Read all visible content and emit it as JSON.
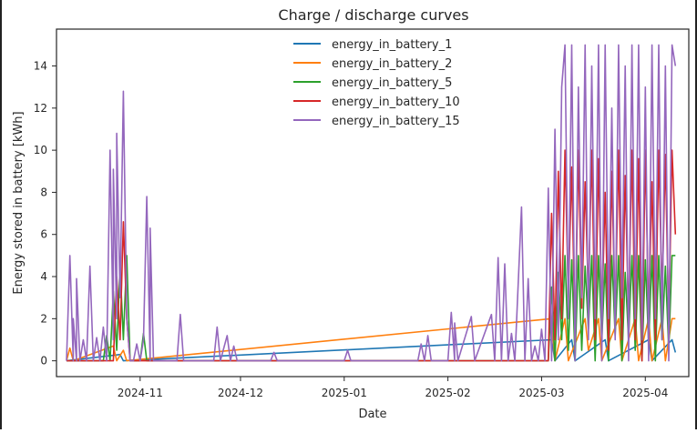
{
  "chart_data": {
    "type": "line",
    "title": "Charge / discharge curves",
    "xlabel": "Date",
    "ylabel": "Energy stored in battery [kWh]",
    "x_range": [
      "2024-10-07",
      "2025-04-14"
    ],
    "ylim": [
      -0.75,
      15.75
    ],
    "x_ticks": [
      {
        "date": "2024-11-01",
        "label": "2024-11"
      },
      {
        "date": "2024-12-01",
        "label": "2024-12"
      },
      {
        "date": "2025-01-01",
        "label": "2025-01"
      },
      {
        "date": "2025-02-01",
        "label": "2025-02"
      },
      {
        "date": "2025-03-01",
        "label": "2025-03"
      },
      {
        "date": "2025-04-01",
        "label": "2025-04"
      }
    ],
    "y_ticks": [
      0,
      2,
      4,
      6,
      8,
      10,
      12,
      14
    ],
    "grid": false,
    "legend_position": "top-center",
    "series": [
      {
        "name": "energy_in_battery_1",
        "color": "#1f77b4",
        "points": [
          [
            "2024-10-10",
            0
          ],
          [
            "2024-10-26",
            0.3
          ],
          [
            "2024-10-27",
            0
          ],
          [
            "2025-03-04",
            1
          ],
          [
            "2025-03-05",
            0
          ],
          [
            "2025-03-10",
            1
          ],
          [
            "2025-03-11",
            0
          ],
          [
            "2025-03-20",
            1
          ],
          [
            "2025-03-21",
            0
          ],
          [
            "2025-04-02",
            1
          ],
          [
            "2025-04-03",
            0
          ],
          [
            "2025-04-09",
            1
          ],
          [
            "2025-04-10",
            0.4
          ]
        ]
      },
      {
        "name": "energy_in_battery_2",
        "color": "#ff7f0e",
        "points": [
          [
            "2024-10-10",
            0
          ],
          [
            "2024-10-11",
            0.6
          ],
          [
            "2024-10-12",
            0
          ],
          [
            "2024-10-24",
            0.7
          ],
          [
            "2024-10-25",
            0
          ],
          [
            "2024-10-27",
            0.5
          ],
          [
            "2024-10-28",
            0
          ],
          [
            "2025-03-04",
            2
          ],
          [
            "2025-03-05",
            0
          ],
          [
            "2025-03-08",
            2
          ],
          [
            "2025-03-09",
            0
          ],
          [
            "2025-03-14",
            2
          ],
          [
            "2025-03-15",
            0.5
          ],
          [
            "2025-03-18",
            2
          ],
          [
            "2025-03-19",
            0
          ],
          [
            "2025-03-24",
            2
          ],
          [
            "2025-03-25",
            0
          ],
          [
            "2025-03-29",
            2
          ],
          [
            "2025-03-30",
            0
          ],
          [
            "2025-04-02",
            2
          ],
          [
            "2025-04-03",
            0
          ],
          [
            "2025-04-06",
            2
          ],
          [
            "2025-04-07",
            0
          ],
          [
            "2025-04-09",
            2
          ],
          [
            "2025-04-10",
            2
          ]
        ]
      },
      {
        "name": "energy_in_battery_5",
        "color": "#2ca02c",
        "points": [
          [
            "2024-10-10",
            0
          ],
          [
            "2024-10-21",
            0
          ],
          [
            "2024-10-22",
            1.2
          ],
          [
            "2024-10-23",
            0
          ],
          [
            "2024-10-24",
            3.3
          ],
          [
            "2024-10-25",
            0.5
          ],
          [
            "2024-10-26",
            4.5
          ],
          [
            "2024-10-27",
            1
          ],
          [
            "2024-10-28",
            5
          ],
          [
            "2024-10-29",
            0
          ],
          [
            "2024-11-01",
            0
          ],
          [
            "2024-11-02",
            1.3
          ],
          [
            "2024-11-03",
            0
          ],
          [
            "2025-03-03",
            0
          ],
          [
            "2025-03-04",
            3.5
          ],
          [
            "2025-03-05",
            0
          ],
          [
            "2025-03-06",
            4.2
          ],
          [
            "2025-03-07",
            1
          ],
          [
            "2025-03-08",
            5
          ],
          [
            "2025-03-09",
            0.5
          ],
          [
            "2025-03-10",
            4.8
          ],
          [
            "2025-03-11",
            0
          ],
          [
            "2025-03-12",
            5
          ],
          [
            "2025-03-13",
            0.5
          ],
          [
            "2025-03-14",
            4.5
          ],
          [
            "2025-03-15",
            1.5
          ],
          [
            "2025-03-16",
            5
          ],
          [
            "2025-03-17",
            0
          ],
          [
            "2025-03-18",
            5
          ],
          [
            "2025-03-19",
            1
          ],
          [
            "2025-03-20",
            4.6
          ],
          [
            "2025-03-21",
            0
          ],
          [
            "2025-03-22",
            5
          ],
          [
            "2025-03-23",
            1.2
          ],
          [
            "2025-03-24",
            5
          ],
          [
            "2025-03-25",
            0
          ],
          [
            "2025-03-26",
            4.2
          ],
          [
            "2025-03-27",
            1
          ],
          [
            "2025-03-28",
            5
          ],
          [
            "2025-03-29",
            0.5
          ],
          [
            "2025-03-30",
            5
          ],
          [
            "2025-03-31",
            0
          ],
          [
            "2025-04-01",
            4.8
          ],
          [
            "2025-04-02",
            0.8
          ],
          [
            "2025-04-03",
            5
          ],
          [
            "2025-04-04",
            0
          ],
          [
            "2025-04-05",
            5
          ],
          [
            "2025-04-06",
            1
          ],
          [
            "2025-04-07",
            4.5
          ],
          [
            "2025-04-08",
            0.5
          ],
          [
            "2025-04-09",
            5
          ],
          [
            "2025-04-10",
            5
          ]
        ]
      },
      {
        "name": "energy_in_battery_10",
        "color": "#d62728",
        "points": [
          [
            "2024-10-10",
            0
          ],
          [
            "2024-10-24",
            0
          ],
          [
            "2024-10-25",
            4
          ],
          [
            "2024-10-26",
            1
          ],
          [
            "2024-10-27",
            6.6
          ],
          [
            "2024-10-28",
            2
          ],
          [
            "2024-10-29",
            0
          ],
          [
            "2025-03-03",
            0
          ],
          [
            "2025-03-04",
            7
          ],
          [
            "2025-03-05",
            1
          ],
          [
            "2025-03-06",
            9
          ],
          [
            "2025-03-07",
            2
          ],
          [
            "2025-03-08",
            10
          ],
          [
            "2025-03-09",
            3
          ],
          [
            "2025-03-10",
            9.2
          ],
          [
            "2025-03-11",
            1
          ],
          [
            "2025-03-12",
            10
          ],
          [
            "2025-03-13",
            2.5
          ],
          [
            "2025-03-14",
            8.5
          ],
          [
            "2025-03-15",
            3
          ],
          [
            "2025-03-16",
            10
          ],
          [
            "2025-03-17",
            1
          ],
          [
            "2025-03-18",
            9.6
          ],
          [
            "2025-03-19",
            2
          ],
          [
            "2025-03-20",
            8
          ],
          [
            "2025-03-21",
            0.5
          ],
          [
            "2025-03-22",
            9
          ],
          [
            "2025-03-23",
            2
          ],
          [
            "2025-03-24",
            10
          ],
          [
            "2025-03-25",
            1
          ],
          [
            "2025-03-26",
            8.8
          ],
          [
            "2025-03-27",
            2
          ],
          [
            "2025-03-28",
            10
          ],
          [
            "2025-03-29",
            1
          ],
          [
            "2025-03-30",
            9.6
          ],
          [
            "2025-03-31",
            0
          ],
          [
            "2025-04-01",
            10
          ],
          [
            "2025-04-02",
            2
          ],
          [
            "2025-04-03",
            8.5
          ],
          [
            "2025-04-04",
            1
          ],
          [
            "2025-04-05",
            10
          ],
          [
            "2025-04-06",
            3
          ],
          [
            "2025-04-07",
            9.8
          ],
          [
            "2025-04-08",
            1.5
          ],
          [
            "2025-04-09",
            10
          ],
          [
            "2025-04-10",
            6
          ]
        ]
      },
      {
        "name": "energy_in_battery_15",
        "color": "#9467bd",
        "points": [
          [
            "2024-10-10",
            0
          ],
          [
            "2024-10-11",
            5
          ],
          [
            "2024-10-12",
            0
          ],
          [
            "2024-10-12",
            2
          ],
          [
            "2024-10-13",
            0
          ],
          [
            "2024-10-13",
            3.9
          ],
          [
            "2024-10-14",
            0
          ],
          [
            "2024-10-15",
            1
          ],
          [
            "2024-10-16",
            0
          ],
          [
            "2024-10-17",
            4.5
          ],
          [
            "2024-10-18",
            0
          ],
          [
            "2024-10-19",
            1.1
          ],
          [
            "2024-10-20",
            0
          ],
          [
            "2024-10-21",
            1.6
          ],
          [
            "2024-10-22",
            0
          ],
          [
            "2024-10-23",
            10
          ],
          [
            "2024-10-24",
            1
          ],
          [
            "2024-10-24",
            9.1
          ],
          [
            "2024-10-25",
            2
          ],
          [
            "2024-10-25",
            10.8
          ],
          [
            "2024-10-26",
            3
          ],
          [
            "2024-10-27",
            12.8
          ],
          [
            "2024-10-28",
            2
          ],
          [
            "2024-10-29",
            0
          ],
          [
            "2024-10-30",
            0
          ],
          [
            "2024-10-31",
            0.8
          ],
          [
            "2024-11-01",
            0
          ],
          [
            "2024-11-02",
            1
          ],
          [
            "2024-11-03",
            7.8
          ],
          [
            "2024-11-04",
            0
          ],
          [
            "2024-11-04",
            6.3
          ],
          [
            "2024-11-05",
            0
          ],
          [
            "2024-11-12",
            0
          ],
          [
            "2024-11-13",
            2.2
          ],
          [
            "2024-11-14",
            0
          ],
          [
            "2024-11-23",
            0
          ],
          [
            "2024-11-24",
            1.6
          ],
          [
            "2024-11-25",
            0
          ],
          [
            "2024-11-27",
            1.2
          ],
          [
            "2024-11-28",
            0
          ],
          [
            "2024-11-29",
            0.7
          ],
          [
            "2024-11-30",
            0
          ],
          [
            "2024-12-10",
            0
          ],
          [
            "2024-12-11",
            0.4
          ],
          [
            "2024-12-12",
            0
          ],
          [
            "2025-01-01",
            0
          ],
          [
            "2025-01-02",
            0.5
          ],
          [
            "2025-01-03",
            0
          ],
          [
            "2025-01-23",
            0
          ],
          [
            "2025-01-24",
            0.8
          ],
          [
            "2025-01-25",
            0
          ],
          [
            "2025-01-26",
            1.2
          ],
          [
            "2025-01-27",
            0
          ],
          [
            "2025-02-01",
            0
          ],
          [
            "2025-02-02",
            2.3
          ],
          [
            "2025-02-03",
            0
          ],
          [
            "2025-02-03",
            1.8
          ],
          [
            "2025-02-04",
            0
          ],
          [
            "2025-02-08",
            2.1
          ],
          [
            "2025-02-09",
            0
          ],
          [
            "2025-02-14",
            2.2
          ],
          [
            "2025-02-15",
            0
          ],
          [
            "2025-02-16",
            4.9
          ],
          [
            "2025-02-17",
            0
          ],
          [
            "2025-02-18",
            4.6
          ],
          [
            "2025-02-19",
            0
          ],
          [
            "2025-02-20",
            1.3
          ],
          [
            "2025-02-21",
            0
          ],
          [
            "2025-02-23",
            7.3
          ],
          [
            "2025-02-24",
            0
          ],
          [
            "2025-02-25",
            3.9
          ],
          [
            "2025-02-26",
            0
          ],
          [
            "2025-02-27",
            0.7
          ],
          [
            "2025-02-28",
            0
          ],
          [
            "2025-03-01",
            1.5
          ],
          [
            "2025-03-02",
            0
          ],
          [
            "2025-03-03",
            8.2
          ],
          [
            "2025-03-04",
            0
          ],
          [
            "2025-03-05",
            11
          ],
          [
            "2025-03-06",
            1
          ],
          [
            "2025-03-07",
            13
          ],
          [
            "2025-03-08",
            15
          ],
          [
            "2025-03-09",
            2
          ],
          [
            "2025-03-10",
            15
          ],
          [
            "2025-03-11",
            0
          ],
          [
            "2025-03-12",
            13
          ],
          [
            "2025-03-13",
            3
          ],
          [
            "2025-03-14",
            15
          ],
          [
            "2025-03-15",
            1
          ],
          [
            "2025-03-16",
            14
          ],
          [
            "2025-03-17",
            2
          ],
          [
            "2025-03-18",
            15
          ],
          [
            "2025-03-19",
            0
          ],
          [
            "2025-03-20",
            15
          ],
          [
            "2025-03-21",
            2
          ],
          [
            "2025-03-22",
            12
          ],
          [
            "2025-03-23",
            1
          ],
          [
            "2025-03-24",
            15
          ],
          [
            "2025-03-25",
            3
          ],
          [
            "2025-03-26",
            14
          ],
          [
            "2025-03-27",
            0
          ],
          [
            "2025-03-28",
            15
          ],
          [
            "2025-03-29",
            2
          ],
          [
            "2025-03-30",
            15
          ],
          [
            "2025-03-31",
            1
          ],
          [
            "2025-04-01",
            13
          ],
          [
            "2025-04-02",
            0
          ],
          [
            "2025-04-03",
            15
          ],
          [
            "2025-04-04",
            2
          ],
          [
            "2025-04-05",
            15
          ],
          [
            "2025-04-06",
            1
          ],
          [
            "2025-04-07",
            14
          ],
          [
            "2025-04-08",
            0
          ],
          [
            "2025-04-09",
            15
          ],
          [
            "2025-04-10",
            14
          ]
        ]
      }
    ]
  }
}
